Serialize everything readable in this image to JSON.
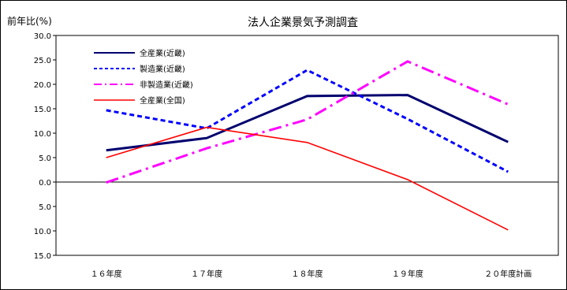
{
  "chart_data": {
    "type": "line",
    "title": "法人企業景気予測調査",
    "ylabel": "前年比(%)",
    "xlabel": "",
    "categories": [
      "１６年度",
      "１７年度",
      "１８年度",
      "１９年度",
      "２０年度計画"
    ],
    "ylim": [
      -15,
      30
    ],
    "yticks": [
      30,
      25,
      20,
      15,
      10,
      5,
      0,
      -5,
      -10,
      -15
    ],
    "ytick_labels": [
      "30.0",
      "25.0",
      "20.0",
      "15.0",
      "10.0",
      "5.0",
      "0.0",
      "5.0",
      "10.0",
      "15.0"
    ],
    "grid": false,
    "legend_position": "top-left",
    "series": [
      {
        "name": "全産業(近畿)",
        "values": [
          6.5,
          9.0,
          17.6,
          17.8,
          8.2
        ],
        "color": "#00006e",
        "style": "solid",
        "width": "thick"
      },
      {
        "name": "製造業(近畿)",
        "values": [
          14.7,
          11.0,
          22.9,
          12.9,
          2.1
        ],
        "color": "#0000ff",
        "style": "dashed",
        "width": "thick"
      },
      {
        "name": "非製造業(近畿)",
        "values": [
          -0.1,
          6.9,
          12.8,
          24.7,
          15.9
        ],
        "color": "#ff00ff",
        "style": "dashdot",
        "width": "thick"
      },
      {
        "name": "全産業(全国)",
        "values": [
          5.0,
          11.2,
          8.1,
          0.5,
          -9.8
        ],
        "color": "#ff0000",
        "style": "solid",
        "width": "thin"
      }
    ]
  }
}
